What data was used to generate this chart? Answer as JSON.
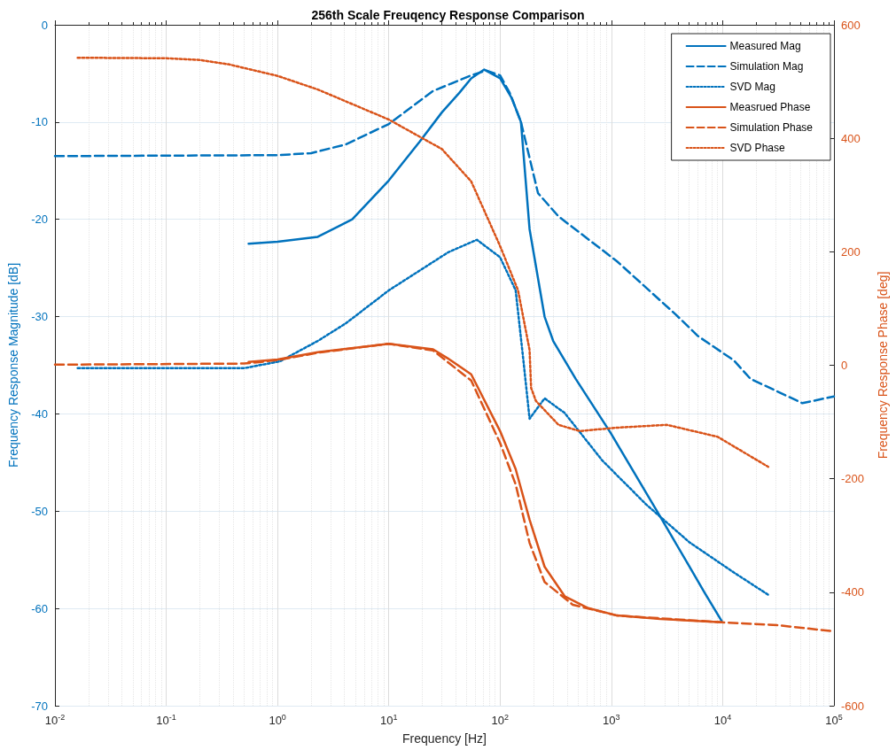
{
  "chart_data": {
    "type": "line",
    "title": "256th Scale Freuqency Response Comparison",
    "xlabel": "Frequency [Hz]",
    "ylabel": "Frequency Response Magnitude [dB]",
    "y2label": "Frequency Response Phase [deg]",
    "log": "x",
    "grid": true,
    "legend": "top right",
    "marker": "none",
    "xlim": [
      0.01,
      100000
    ],
    "xticks": [
      {
        "value": 0.01,
        "label": "10$^{-2}$"
      },
      {
        "value": 0.1,
        "label": "10$^{-1}$"
      },
      {
        "value": 1,
        "label": "10$^{0}$"
      },
      {
        "value": 10,
        "label": "10$^{1}$"
      },
      {
        "value": 100,
        "label": "10$^{2}$"
      },
      {
        "value": 1000,
        "label": "10$^{3}$"
      },
      {
        "value": 10000,
        "label": "10$^{4}$"
      },
      {
        "value": 100000,
        "label": "10$^{5}$"
      }
    ],
    "ylim": [
      -70,
      0
    ],
    "yticks": [
      -70,
      -60,
      -50,
      -40,
      -30,
      -20,
      -10,
      0
    ],
    "y2lim": [
      -600,
      600
    ],
    "y2ticks": [
      -600,
      -400,
      -200,
      0,
      200,
      400,
      600
    ],
    "series": [
      {
        "name": "Measured Mag",
        "color": "#0072bd",
        "line_style": "solid",
        "x": [
          0.55,
          1,
          2.3,
          4.7,
          10,
          19,
          30,
          43,
          55,
          72,
          100,
          128,
          154,
          184,
          251,
          300,
          478,
          990,
          2630,
          5030,
          6900,
          9800
        ],
        "values": [
          -22.5,
          -22.3,
          -21.8,
          -20,
          -16,
          -12,
          -9,
          -7,
          -5.5,
          -4.6,
          -5.5,
          -7.6,
          -10,
          -21,
          -30,
          -32.5,
          -36.4,
          -42,
          -50.2,
          -55.7,
          -58.4,
          -61.3
        ]
      },
      {
        "name": "Simulation Mag",
        "color": "#0072bd",
        "line_style": "dashed",
        "x": [
          0.01,
          1,
          2,
          4.1,
          10,
          25,
          55,
          75,
          100,
          122,
          154,
          219,
          335,
          1120,
          3800,
          6000,
          12600,
          17800,
          52000,
          100000
        ],
        "values": [
          -13.5,
          -13.4,
          -13.2,
          -12.3,
          -10.2,
          -6.8,
          -5.2,
          -4.7,
          -5.2,
          -7,
          -10,
          -17.3,
          -19.7,
          -24.3,
          -29.8,
          -32,
          -34.5,
          -36.4,
          -38.9,
          -38.2
        ]
      },
      {
        "name": "SVD Mag",
        "color": "#0072bd",
        "line_style": "dotted",
        "x": [
          0.016,
          0.1,
          0.5,
          1.05,
          2.3,
          4.1,
          10,
          34,
          62,
          100,
          138,
          163,
          184,
          251,
          380,
          830,
          2050,
          5030,
          12600,
          25700
        ],
        "values": [
          -35.3,
          -35.3,
          -35.3,
          -34.6,
          -32.5,
          -30.7,
          -27.3,
          -23.4,
          -22.1,
          -23.9,
          -27.3,
          -34.8,
          -40.5,
          -38.4,
          -39.9,
          -44.8,
          -49.3,
          -53.2,
          -56.3,
          -58.6
        ]
      },
      {
        "name": "Measrued Phase",
        "color": "#d95319",
        "line_style": "solid",
        "axis": "y2",
        "x": [
          0.55,
          1,
          2.3,
          10,
          25,
          34,
          55,
          100,
          138,
          184,
          251,
          380,
          620,
          1120,
          2750,
          9800
        ],
        "values": [
          6,
          10,
          23,
          38,
          28,
          12,
          -16,
          -116,
          -183,
          -272,
          -355,
          -407,
          -428,
          -441,
          -447,
          -453
        ]
      },
      {
        "name": "Simulation Phase",
        "color": "#d95319",
        "line_style": "dashed",
        "axis": "y2",
        "x": [
          0.01,
          0.5,
          1,
          2.3,
          10,
          25,
          55,
          100,
          138,
          184,
          251,
          450,
          1120,
          9800,
          31000,
          100000
        ],
        "values": [
          1,
          3,
          9,
          22,
          38,
          26,
          -27,
          -137,
          -210,
          -313,
          -382,
          -422,
          -441,
          -453,
          -458,
          -469
        ]
      },
      {
        "name": "SVD Phase",
        "color": "#d95319",
        "line_style": "dotted",
        "axis": "y2",
        "x": [
          0.016,
          0.1,
          0.2,
          0.37,
          1,
          2.3,
          10,
          30,
          55,
          100,
          145,
          184,
          190,
          210,
          335,
          520,
          1120,
          3160,
          9000,
          25700
        ],
        "values": [
          542,
          541,
          538,
          530,
          510,
          486,
          433,
          381,
          324,
          210,
          132,
          27,
          -40,
          -63,
          -105,
          -116,
          -110,
          -105,
          -126,
          -179
        ]
      }
    ]
  }
}
